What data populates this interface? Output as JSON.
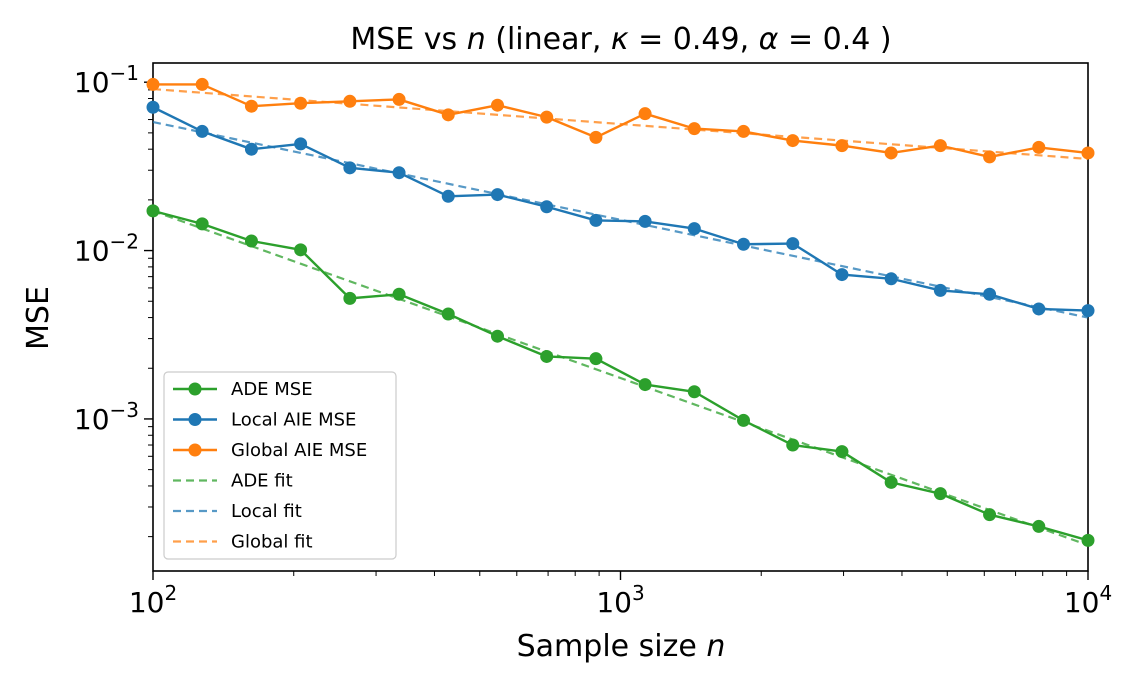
{
  "chart_data": {
    "type": "line",
    "title": "MSE vs n (linear, κ = 0.49, α = 0.4 )",
    "title_parts": {
      "prefix": "MSE vs ",
      "var": "n",
      "mid": " (linear, ",
      "kappa_sym": "κ",
      "kappa_eq": " = 0.49, ",
      "alpha_sym": "α",
      "alpha_eq": " = 0.4 )"
    },
    "xlabel": "Sample size n",
    "xlabel_parts": {
      "text": "Sample size ",
      "var": "n"
    },
    "ylabel": "MSE",
    "xscale": "log",
    "yscale": "log",
    "xlim": [
      100,
      10000
    ],
    "ylim": [
      0.000125,
      0.13
    ],
    "x_ticks": [
      {
        "value": 100,
        "base": "10",
        "exp": "2"
      },
      {
        "value": 1000,
        "base": "10",
        "exp": "3"
      },
      {
        "value": 10000,
        "base": "10",
        "exp": "4"
      }
    ],
    "y_ticks": [
      {
        "value": 0.001,
        "base": "10",
        "exp": "−3"
      },
      {
        "value": 0.01,
        "base": "10",
        "exp": "−2"
      },
      {
        "value": 0.1,
        "base": "10",
        "exp": "−1"
      }
    ],
    "grid": false,
    "legend_position": "lower-left",
    "x": [
      100,
      127.4,
      162.4,
      206.9,
      263.7,
      336,
      428.1,
      545.6,
      695.2,
      885.9,
      1128.8,
      1438.4,
      1832.9,
      2335.7,
      2976.4,
      3792.7,
      4832.9,
      6158.5,
      7847.6,
      10000
    ],
    "series": [
      {
        "name": "ADE MSE",
        "color": "#2ca02c",
        "style": "solid-marker",
        "values": [
          0.0172,
          0.0144,
          0.0114,
          0.0101,
          0.0052,
          0.0055,
          0.0042,
          0.0031,
          0.00235,
          0.00228,
          0.0016,
          0.00145,
          0.00098,
          0.0007,
          0.00064,
          0.00042,
          0.00036,
          0.00027,
          0.00023,
          0.00019
        ]
      },
      {
        "name": "Local AIE MSE",
        "color": "#1f77b4",
        "style": "solid-marker",
        "values": [
          0.071,
          0.051,
          0.04,
          0.043,
          0.031,
          0.029,
          0.021,
          0.0215,
          0.0182,
          0.0151,
          0.0149,
          0.0135,
          0.0109,
          0.011,
          0.0072,
          0.0068,
          0.0058,
          0.0055,
          0.0045,
          0.0044
        ]
      },
      {
        "name": "Global AIE MSE",
        "color": "#ff7f0e",
        "style": "solid-marker",
        "values": [
          0.097,
          0.097,
          0.072,
          0.075,
          0.077,
          0.079,
          0.064,
          0.073,
          0.062,
          0.047,
          0.065,
          0.053,
          0.051,
          0.045,
          0.042,
          0.038,
          0.042,
          0.036,
          0.041,
          0.038
        ]
      },
      {
        "name": "ADE fit",
        "color": "#2ca02c",
        "style": "dashed",
        "x_range": [
          100,
          10000
        ],
        "y_range": [
          0.0172,
          0.000178
        ]
      },
      {
        "name": "Local fit",
        "color": "#1f77b4",
        "style": "dashed",
        "x_range": [
          100,
          10000
        ],
        "y_range": [
          0.058,
          0.004
        ]
      },
      {
        "name": "Global fit",
        "color": "#ff7f0e",
        "style": "dashed",
        "x_range": [
          100,
          10000
        ],
        "y_range": [
          0.091,
          0.035
        ]
      }
    ]
  }
}
